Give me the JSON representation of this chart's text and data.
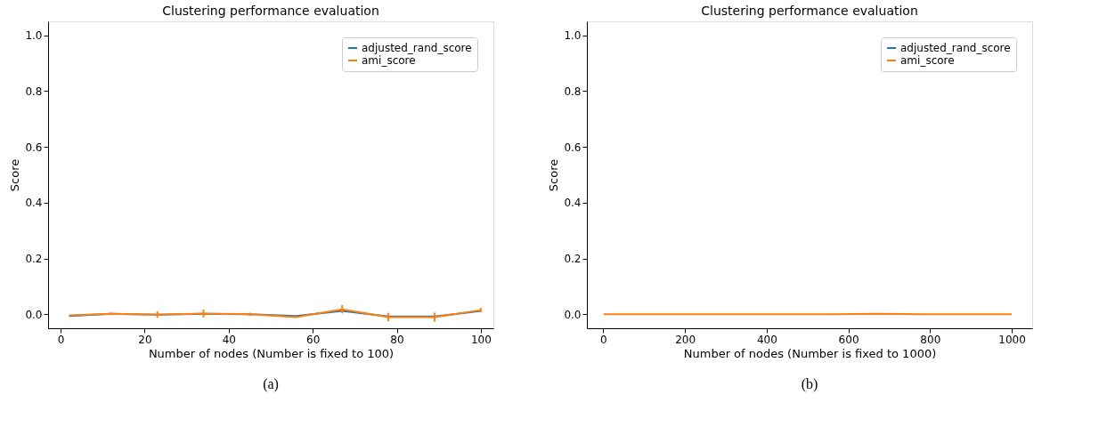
{
  "chart_data": [
    {
      "type": "line",
      "title": "Clustering performance evaluation",
      "xlabel": "Number of nodes (Number is fixed to 100)",
      "ylabel": "Score",
      "x": [
        2,
        12,
        23,
        34,
        45,
        56,
        67,
        78,
        89,
        100
      ],
      "xlim": [
        -3,
        103
      ],
      "xticks": [
        0,
        20,
        40,
        60,
        80,
        100
      ],
      "ylim": [
        -0.05,
        1.05
      ],
      "yticks": [
        {
          "value": 0,
          "label": "0.0"
        },
        {
          "value": 0.2,
          "label": "0.2"
        },
        {
          "value": 0.4,
          "label": "0.4"
        },
        {
          "value": 0.6,
          "label": "0.6"
        },
        {
          "value": 0.8,
          "label": "0.8"
        },
        {
          "value": 1,
          "label": "1.0"
        }
      ],
      "legend": "top right",
      "grid": false,
      "annotations": [
        "(a)"
      ],
      "series": [
        {
          "name": "adjusted_rand_score",
          "color": "#1f77b4",
          "values": [
            -0.006,
            0.002,
            -0.001,
            0.002,
            0.0,
            -0.006,
            0.012,
            -0.008,
            -0.008,
            0.012
          ]
        },
        {
          "name": "ami_score",
          "color": "#ff7f0e",
          "values": [
            -0.004,
            0.002,
            -0.001,
            0.003,
            0.0,
            -0.01,
            0.018,
            -0.01,
            -0.01,
            0.015
          ],
          "errors": [
            null,
            0.005,
            0.012,
            0.014,
            0.006,
            null,
            0.015,
            0.015,
            0.016,
            0.008
          ]
        }
      ]
    },
    {
      "type": "line",
      "title": "Clustering performance evaluation",
      "xlabel": "Number of nodes (Number is fixed to 1000)",
      "ylabel": "Score",
      "x": [
        1,
        112,
        223,
        334,
        445,
        556,
        667,
        778,
        889,
        1000
      ],
      "xlim": [
        -40,
        1050
      ],
      "xticks": [
        0,
        200,
        400,
        600,
        800,
        1000
      ],
      "ylim": [
        -0.05,
        1.05
      ],
      "yticks": [
        {
          "value": 0,
          "label": "0.0"
        },
        {
          "value": 0.2,
          "label": "0.2"
        },
        {
          "value": 0.4,
          "label": "0.4"
        },
        {
          "value": 0.6,
          "label": "0.6"
        },
        {
          "value": 0.8,
          "label": "0.8"
        },
        {
          "value": 1,
          "label": "1.0"
        }
      ],
      "legend": "top right",
      "grid": false,
      "annotations": [
        "(b)"
      ],
      "series": [
        {
          "name": "adjusted_rand_score",
          "color": "#1f77b4",
          "values": [
            null,
            null,
            null,
            null,
            null,
            null,
            null,
            null,
            null,
            null
          ]
        },
        {
          "name": "ami_score",
          "color": "#ff7f0e",
          "values": [
            0,
            0,
            0,
            0,
            0,
            0,
            0.002,
            0,
            0,
            0
          ]
        }
      ]
    }
  ]
}
